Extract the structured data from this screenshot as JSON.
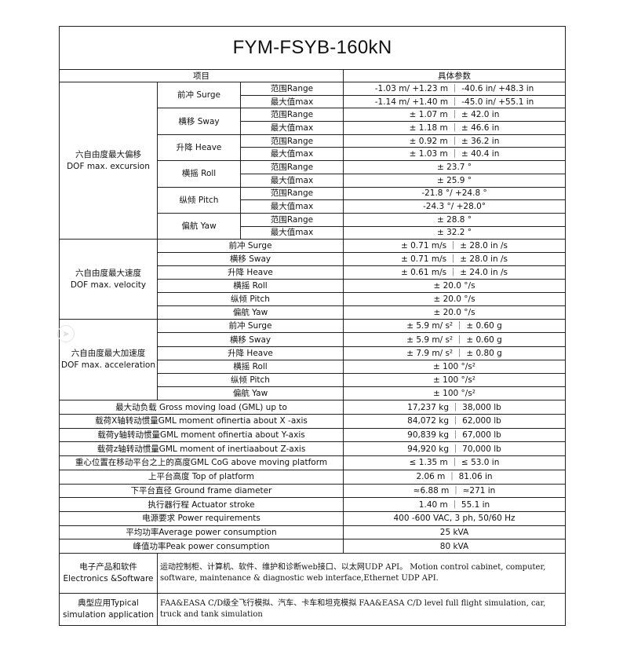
{
  "title": "FYM-FSYB-160kN",
  "header": {
    "item": "项目",
    "params": "具体参数"
  },
  "excursion": {
    "group": "六自由度最大偏移",
    "group_en": "DOF max. excursion",
    "axes": [
      {
        "name": "前冲 Surge",
        "rows": [
          {
            "label": "范围Range",
            "value": "-1.03 m/ +1.23 m ｜ -40.6 in/ +48.3 in"
          },
          {
            "label": "最大值max",
            "value": "-1.14 m/ +1.40 m ｜ -45.0 in/ +55.1 in"
          }
        ]
      },
      {
        "name": "横移 Sway",
        "rows": [
          {
            "label": "范围Range",
            "value": "± 1.07 m ｜ ± 42.0 in"
          },
          {
            "label": "最大值max",
            "value": "± 1.18 m ｜ ± 46.6 in"
          }
        ]
      },
      {
        "name": "升降 Heave",
        "rows": [
          {
            "label": "范围Range",
            "value": "± 0.92 m ｜ ± 36.2 in"
          },
          {
            "label": "最大值max",
            "value": "± 1.03 m ｜ ± 40.4 in"
          }
        ]
      },
      {
        "name": "横摇 Roll",
        "rows": [
          {
            "label": "范围Range",
            "value": "± 23.7 °"
          },
          {
            "label": "最大值max",
            "value": "± 25.9 °"
          }
        ]
      },
      {
        "name": "纵倾 Pitch",
        "rows": [
          {
            "label": "范围Range",
            "value": "-21.8 °/ +24.8 °"
          },
          {
            "label": "最大值max",
            "value": "-24.3 °/ +28.0°"
          }
        ]
      },
      {
        "name": "偏航 Yaw",
        "rows": [
          {
            "label": "范围Range",
            "value": "± 28.8 °"
          },
          {
            "label": "最大值max",
            "value": "± 32.2 °"
          }
        ]
      }
    ]
  },
  "velocity": {
    "group": "六自由度最大速度",
    "group_en": "DOF max. velocity",
    "rows": [
      {
        "label": "前冲 Surge",
        "value": "± 0.71 m/s ｜ ± 28.0 in /s"
      },
      {
        "label": "横移 Sway",
        "value": "± 0.71 m/s ｜ ± 28.0 in /s"
      },
      {
        "label": "升降 Heave",
        "value": "± 0.61 m/s ｜ ± 24.0 in /s"
      },
      {
        "label": "横摇 Roll",
        "value": "± 20.0 °/s"
      },
      {
        "label": "纵倾 Pitch",
        "value": "± 20.0 °/s"
      },
      {
        "label": "偏航 Yaw",
        "value": "± 20.0 °/s"
      }
    ]
  },
  "acceleration": {
    "group": "六自由度最大加速度",
    "group_en": "DOF max. acceleration",
    "rows": [
      {
        "label": "前冲 Surge",
        "value": "± 5.9 m/ s² ｜ ± 0.60 g"
      },
      {
        "label": "横移 Sway",
        "value": "± 5.9 m/ s² ｜ ± 0.60 g"
      },
      {
        "label": "升降 Heave",
        "value": "± 7.9 m/ s² ｜ ± 0.80 g"
      },
      {
        "label": "横摇 Roll",
        "value": "± 100 °/s²"
      },
      {
        "label": "纵倾 Pitch",
        "value": "± 100 °/s²"
      },
      {
        "label": "偏航 Yaw",
        "value": "± 100 °/s²"
      }
    ]
  },
  "misc": [
    {
      "label": "最大动负载 Gross moving load (GML) up to",
      "value": "17,237 kg ｜ 38,000 lb"
    },
    {
      "label": "载荷X轴转动惯量GML moment ofinertia about X -axis",
      "value": "84,072 kg ｜ 62,000 lb"
    },
    {
      "label": "载荷y轴转动惯量GML moment ofinertia about Y-axis",
      "value": "90,839 kg ｜ 67,000 lb"
    },
    {
      "label": "载荷z轴转动惯量GML moment of inertiaabout Z-axis",
      "value": "94,920 kg ｜ 70,000 lb"
    },
    {
      "label": "重心位置在移动平台之上的高度GML CoG above moving platform",
      "value": "≤ 1.35 m ｜ ≤ 53.0 in"
    },
    {
      "label": "上平台高度 Top of platform",
      "value": "2.06 m ｜ 81.06 in"
    },
    {
      "label": "下平台直径 Ground frame diameter",
      "value": "≈6.88 m ｜ ≈271 in"
    },
    {
      "label": "执行器行程 Actuator stroke",
      "value": "1.40 m ｜ 55.1 in"
    },
    {
      "label": "电源要求 Power requirements",
      "value": "400 -600 VAC, 3 ph, 50/60 Hz"
    },
    {
      "label": "平均功率Average power consumption",
      "value": "25 kVA"
    },
    {
      "label": "峰值功率Peak power consumption",
      "value": "80 kVA"
    }
  ],
  "electronics": {
    "label": "电子产品和软件",
    "label_en": "Electronics &Software",
    "value": "运动控制柜、计算机、软件、维护和诊断web接口、以太网UDP API。 Motion control cabinet, computer, software, maintenance & diagnostic web interface,Ethernet UDP API."
  },
  "application": {
    "label": "典型应用Typical",
    "label_en": "simulation application",
    "value": "FAA&EASA C/D级全飞行模拟、汽车、卡车和坦克模拟 FAA&EASA C/D level full flight simulation, car, truck and tank simulation"
  },
  "icons": {
    "nav": "chevron-right-circle-icon"
  }
}
